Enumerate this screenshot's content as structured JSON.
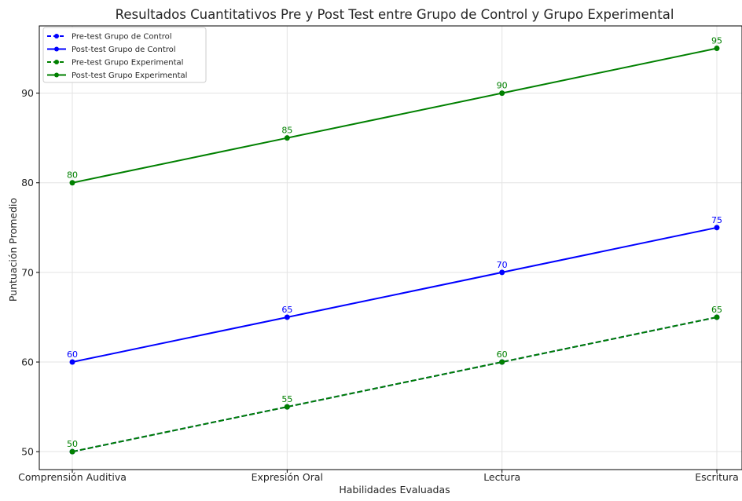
{
  "chart_data": {
    "type": "line",
    "title": "Resultados Cuantitativos Pre y Post Test entre Grupo de Control y Grupo Experimental",
    "xlabel": "Habilidades Evaluadas",
    "ylabel": "Puntuación Promedio",
    "categories": [
      "Comprensión Auditiva",
      "Expresión Oral",
      "Lectura",
      "Escritura"
    ],
    "yticks": [
      50,
      60,
      70,
      80,
      90
    ],
    "ylim": [
      48,
      97.5
    ],
    "grid": true,
    "legend_position": "top-left",
    "series": [
      {
        "name": "Pre-test Grupo de Control",
        "values": [
          50,
          55,
          60,
          65
        ],
        "color": "#0000ff",
        "line_style": "dashed",
        "show_labels": false
      },
      {
        "name": "Post-test Grupo de Control",
        "values": [
          60,
          65,
          70,
          75
        ],
        "color": "#0000ff",
        "line_style": "solid",
        "show_labels": true
      },
      {
        "name": "Pre-test Grupo Experimental",
        "values": [
          50,
          55,
          60,
          65
        ],
        "color": "#008000",
        "line_style": "dashed",
        "show_labels": true
      },
      {
        "name": "Post-test Grupo Experimental",
        "values": [
          80,
          85,
          90,
          95
        ],
        "color": "#008000",
        "line_style": "solid",
        "show_labels": true
      }
    ]
  }
}
